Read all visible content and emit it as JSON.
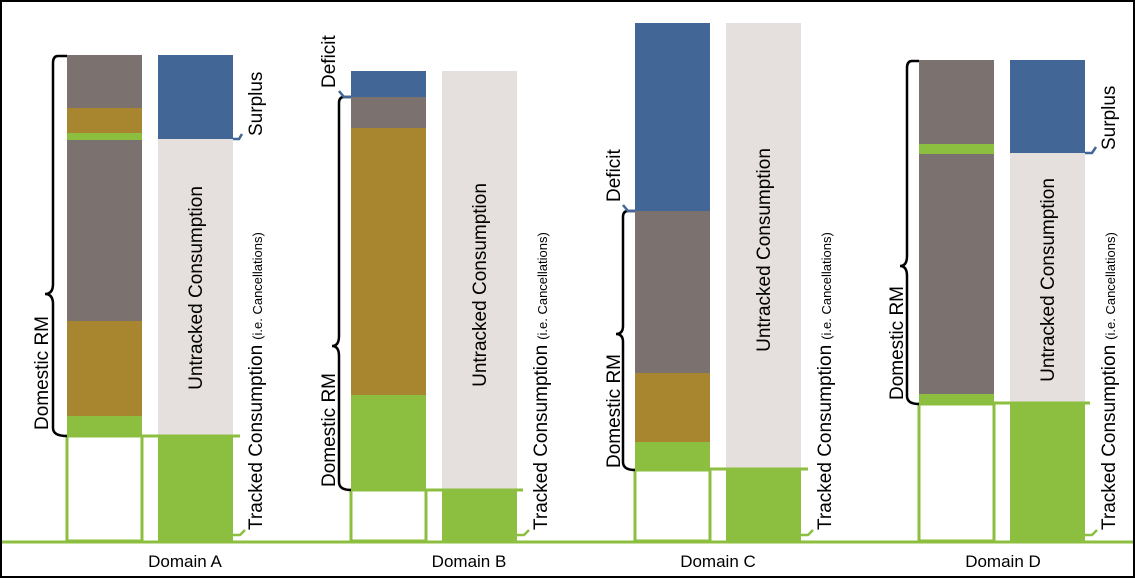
{
  "colors": {
    "gray": "#7b726f",
    "ochre": "#a8862f",
    "green": "#8cbf3f",
    "blue": "#426796",
    "light": "#e5dfdd",
    "outline": "#8cbf3f",
    "bracket_blue": "#426796"
  },
  "labels": {
    "domestic_rm": "Domestic RM",
    "untracked": "Untracked Consumption",
    "tracked": "Tracked Consumption",
    "tracked_note": "(i.e. Cancellations)",
    "surplus": "Surplus",
    "deficit": "Deficit"
  },
  "domains": [
    {
      "name": "Domain A"
    },
    {
      "name": "Domain B"
    },
    {
      "name": "Domain C"
    },
    {
      "name": "Domain D"
    }
  ]
}
